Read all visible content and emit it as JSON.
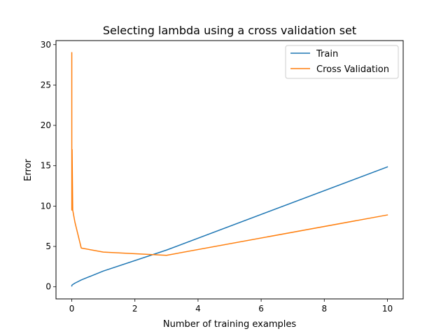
{
  "chart_data": {
    "type": "line",
    "title": "Selecting lambda using a cross validation set",
    "xlabel": "Number of training examples",
    "ylabel": "Error",
    "xlim": [
      -0.5,
      10.5
    ],
    "ylim": [
      -1.5,
      30.5
    ],
    "xticks": [
      0,
      2,
      4,
      6,
      8,
      10
    ],
    "yticks": [
      0,
      5,
      10,
      15,
      20,
      25,
      30
    ],
    "xtick_labels": [
      "0",
      "2",
      "4",
      "6",
      "8",
      "10"
    ],
    "ytick_labels": [
      "0",
      "5",
      "10",
      "15",
      "20",
      "25",
      "30"
    ],
    "grid": false,
    "legend_position": "top-right",
    "series": [
      {
        "name": "Train",
        "color": "#1f77b4",
        "x": [
          0,
          0.001,
          0.003,
          0.01,
          0.03,
          0.1,
          0.3,
          1,
          3,
          10
        ],
        "y": [
          0.1,
          0.15,
          0.18,
          0.22,
          0.28,
          0.45,
          0.85,
          1.95,
          4.55,
          14.85
        ]
      },
      {
        "name": "Cross Validation",
        "color": "#ff7f0e",
        "x": [
          0,
          0.001,
          0.003,
          0.01,
          0.03,
          0.1,
          0.3,
          1,
          3,
          10
        ],
        "y": [
          29.0,
          9.5,
          10.5,
          17.0,
          9.5,
          8.0,
          4.8,
          4.3,
          3.9,
          8.9
        ]
      }
    ]
  }
}
